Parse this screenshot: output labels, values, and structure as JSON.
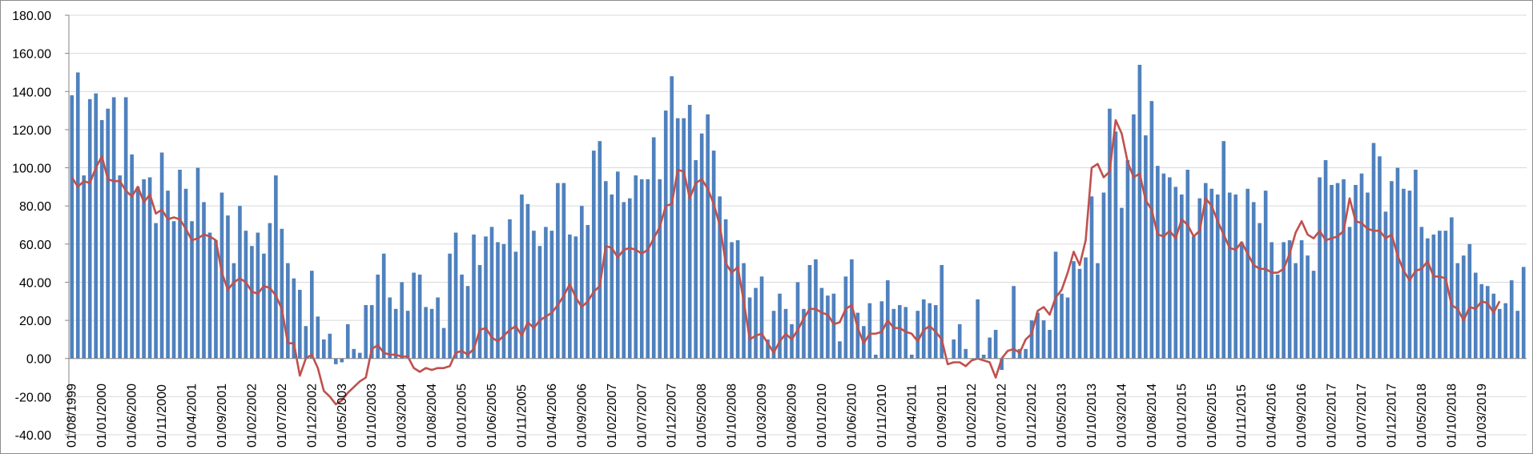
{
  "chart_data": {
    "type": "bar",
    "title": "",
    "xlabel": "",
    "ylabel": "",
    "ylim": [
      -40,
      180
    ],
    "y_ticks": [
      -40,
      -20,
      0,
      20,
      40,
      60,
      80,
      100,
      120,
      140,
      160,
      180
    ],
    "y_tick_labels": [
      "-40.00",
      "-20.00",
      "0.00",
      "20.00",
      "40.00",
      "60.00",
      "80.00",
      "100.00",
      "120.00",
      "140.00",
      "160.00",
      "180.00"
    ],
    "x_tick_labels": [
      "01/08/1999",
      "01/01/2000",
      "01/06/2000",
      "01/11/2000",
      "01/04/2001",
      "01/09/2001",
      "01/02/2002",
      "01/07/2002",
      "01/12/2002",
      "01/05/2003",
      "01/10/2003",
      "01/03/2004",
      "01/08/2004",
      "01/01/2005",
      "01/06/2005",
      "01/11/2005",
      "01/04/2006",
      "01/09/2006",
      "01/02/2007",
      "01/07/2007",
      "01/12/2007",
      "01/05/2008",
      "01/10/2008",
      "01/03/2009",
      "01/08/2009",
      "01/01/2010",
      "01/06/2010",
      "01/11/2010",
      "01/04/2011",
      "01/09/2011",
      "01/02/2012",
      "01/07/2012",
      "01/12/2012",
      "01/05/2013",
      "01/10/2013",
      "01/03/2014",
      "01/08/2014",
      "01/01/2015",
      "01/06/2015",
      "01/11/2015",
      "01/04/2016",
      "01/09/2016",
      "01/02/2017",
      "01/07/2017",
      "01/12/2017",
      "01/05/2018",
      "01/10/2018",
      "01/03/2019"
    ],
    "grid": true,
    "legend": "none",
    "bar_color": "#4F81BD",
    "line_color": "#C0504D",
    "series": [
      {
        "type": "bar",
        "values": [
          138,
          150,
          96,
          136,
          139,
          125,
          131,
          137,
          96,
          137,
          107,
          90,
          94,
          95,
          71,
          108,
          88,
          72,
          99,
          89,
          72,
          100,
          82,
          66,
          62,
          87,
          75,
          50,
          80,
          67,
          59,
          66,
          55,
          71,
          96,
          68,
          50,
          42,
          36,
          17,
          46,
          22,
          10,
          13,
          -3,
          -2,
          18,
          5,
          3,
          28,
          28,
          44,
          55,
          32,
          26,
          40,
          25,
          45,
          44,
          27,
          26,
          32,
          16,
          55,
          66,
          44,
          38,
          65,
          49,
          64,
          69,
          61,
          60,
          73,
          56,
          86,
          81,
          67,
          59,
          69,
          67,
          92,
          92,
          65,
          64,
          80,
          70,
          109,
          114,
          93,
          86,
          98,
          82,
          84,
          96,
          94,
          94,
          116,
          94,
          130,
          148,
          126,
          126,
          133,
          104,
          118,
          128,
          109,
          85,
          73,
          61,
          62,
          50,
          32,
          37,
          43,
          10,
          25,
          34,
          26,
          18,
          40,
          26,
          49,
          52,
          37,
          33,
          34,
          9,
          43,
          52,
          24,
          17,
          29,
          2,
          30,
          41,
          26,
          28,
          27,
          2,
          25,
          31,
          29,
          28,
          49,
          0,
          10,
          18,
          5,
          0,
          31,
          2,
          11,
          15,
          -6,
          0,
          38,
          5,
          5,
          20,
          24,
          20,
          15,
          56,
          34,
          32,
          51,
          47,
          53,
          85,
          50,
          87,
          131,
          119,
          79,
          104,
          128,
          154,
          117,
          135,
          101,
          97,
          95,
          90,
          86,
          99,
          64,
          84,
          92,
          89,
          86,
          114,
          87,
          86,
          61,
          89,
          82,
          71,
          88,
          61,
          44,
          61,
          62,
          50,
          62,
          54,
          46,
          95,
          104,
          91,
          92,
          94,
          69,
          91,
          97,
          87,
          113,
          106,
          77,
          93,
          100,
          89,
          88,
          99,
          69,
          63,
          65,
          67,
          67,
          74,
          50,
          54,
          60,
          45,
          39,
          38,
          34,
          26,
          29,
          41,
          25,
          48
        ]
      },
      {
        "type": "line",
        "values": [
          95,
          90,
          93,
          92,
          100,
          106,
          94,
          93,
          93,
          88,
          85,
          90,
          82,
          86,
          76,
          78,
          73,
          74,
          73,
          68,
          62,
          63,
          65,
          64,
          62,
          45,
          36,
          40,
          42,
          40,
          35,
          34,
          38,
          37,
          33,
          26,
          8,
          8,
          -9,
          0,
          2,
          -5,
          -17,
          -20,
          -24,
          -22,
          -18,
          -15,
          -12,
          -10,
          5,
          7,
          3,
          2,
          2,
          1,
          1,
          -5,
          -7,
          -5,
          -6,
          -5,
          -5,
          -4,
          3,
          4,
          2,
          5,
          15,
          16,
          11,
          9,
          12,
          15,
          17,
          12,
          19,
          16,
          20,
          22,
          24,
          28,
          33,
          39,
          32,
          27,
          30,
          35,
          38,
          59,
          58,
          53,
          57,
          58,
          57,
          55,
          57,
          63,
          69,
          80,
          81,
          99,
          98,
          84,
          92,
          94,
          89,
          81,
          70,
          50,
          45,
          48,
          30,
          10,
          12,
          13,
          8,
          3,
          9,
          13,
          10,
          15,
          21,
          26,
          26,
          24,
          23,
          18,
          19,
          26,
          28,
          16,
          8,
          13,
          13,
          14,
          20,
          16,
          16,
          14,
          13,
          9,
          15,
          17,
          14,
          10,
          -3,
          -2,
          -2,
          -4,
          -1,
          0,
          -1,
          -2,
          -10,
          0,
          4,
          5,
          3,
          10,
          13,
          25,
          27,
          23,
          32,
          36,
          45,
          56,
          49,
          62,
          100,
          102,
          95,
          98,
          125,
          118,
          103,
          95,
          97,
          83,
          78,
          65,
          64,
          67,
          63,
          73,
          70,
          64,
          67,
          84,
          80,
          72,
          65,
          58,
          57,
          61,
          55,
          49,
          47,
          47,
          45,
          45,
          47,
          55,
          66,
          72,
          65,
          63,
          67,
          62,
          63,
          64,
          67,
          84,
          72,
          71,
          68,
          67,
          67,
          63,
          65,
          54,
          46,
          41,
          46,
          47,
          51,
          43,
          43,
          42,
          28,
          26,
          20,
          27,
          26,
          30,
          29,
          24,
          30
        ]
      }
    ]
  }
}
